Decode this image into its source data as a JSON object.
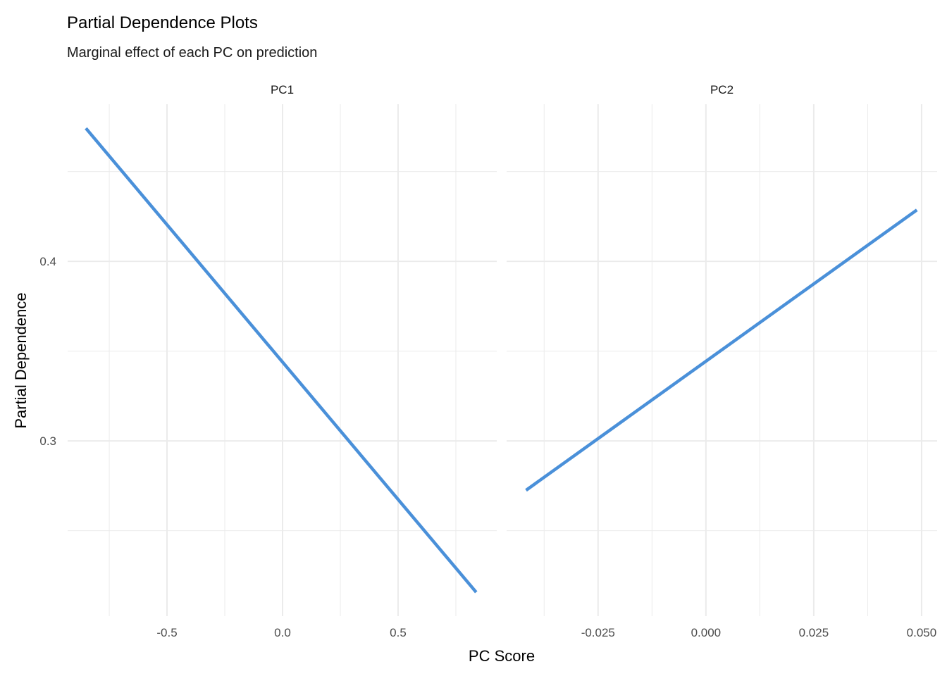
{
  "chart_data": {
    "type": "line",
    "title": "Partial Dependence Plots",
    "subtitle": "Marginal effect of each PC on prediction",
    "xlabel": "PC Score",
    "ylabel": "Partial Dependence",
    "color": "#4A90D9",
    "grid": true,
    "ylim": [
      0.2024,
      0.4875
    ],
    "yticks": [
      0.3,
      0.4
    ],
    "ytick_labels": [
      "0.3",
      "0.4"
    ],
    "yminor": [
      0.25,
      0.35,
      0.45
    ],
    "panels": [
      {
        "name": "PC1",
        "xlim": [
          -0.93,
          0.927
        ],
        "xticks": [
          -0.5,
          0.0,
          0.5
        ],
        "xtick_labels": [
          "-0.5",
          "0.0",
          "0.5"
        ],
        "xminor": [
          -0.75,
          -0.25,
          0.25,
          0.75
        ],
        "x": [
          -0.851,
          0.838
        ],
        "y": [
          0.4741,
          0.2157
        ]
      },
      {
        "name": "PC2",
        "xlim": [
          -0.0462,
          0.0536
        ],
        "xticks": [
          -0.025,
          0.0,
          0.025,
          0.05
        ],
        "xtick_labels": [
          "-0.025",
          "0.000",
          "0.025",
          "0.050"
        ],
        "xminor": [
          -0.0375,
          -0.0125,
          0.0125,
          0.0375
        ],
        "x": [
          -0.0417,
          0.0489
        ],
        "y": [
          0.2725,
          0.4286
        ]
      }
    ]
  }
}
